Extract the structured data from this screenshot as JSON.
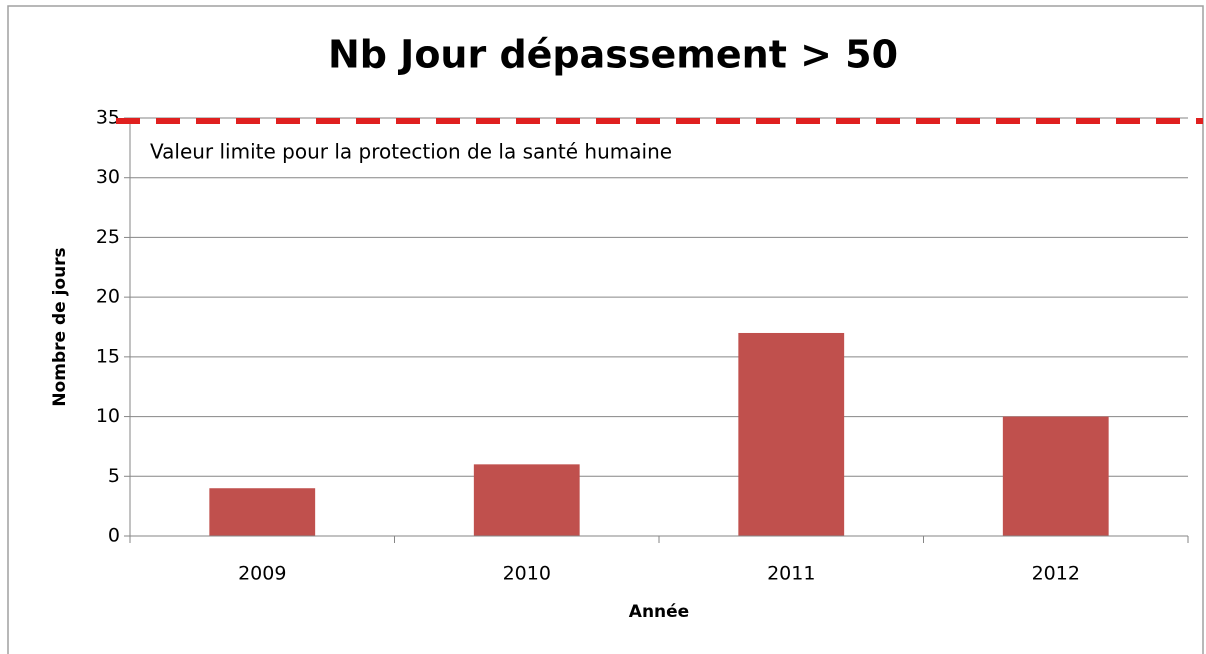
{
  "chart_data": {
    "type": "bar",
    "title": "Nb Jour dépassement > 50",
    "x_label": "Année",
    "y_label": "Nombre de jours",
    "categories": [
      "2009",
      "2010",
      "2011",
      "2012"
    ],
    "values": [
      4,
      6,
      17,
      10
    ],
    "color": "#c0504d",
    "ylim": [
      0,
      35
    ],
    "yticks": [
      0,
      5,
      10,
      15,
      20,
      25,
      30,
      35
    ],
    "grid": true,
    "reference_line": {
      "value": 35,
      "label": "Valeur limite pour la protection de la santé humaine",
      "color": "#e0201f"
    }
  }
}
